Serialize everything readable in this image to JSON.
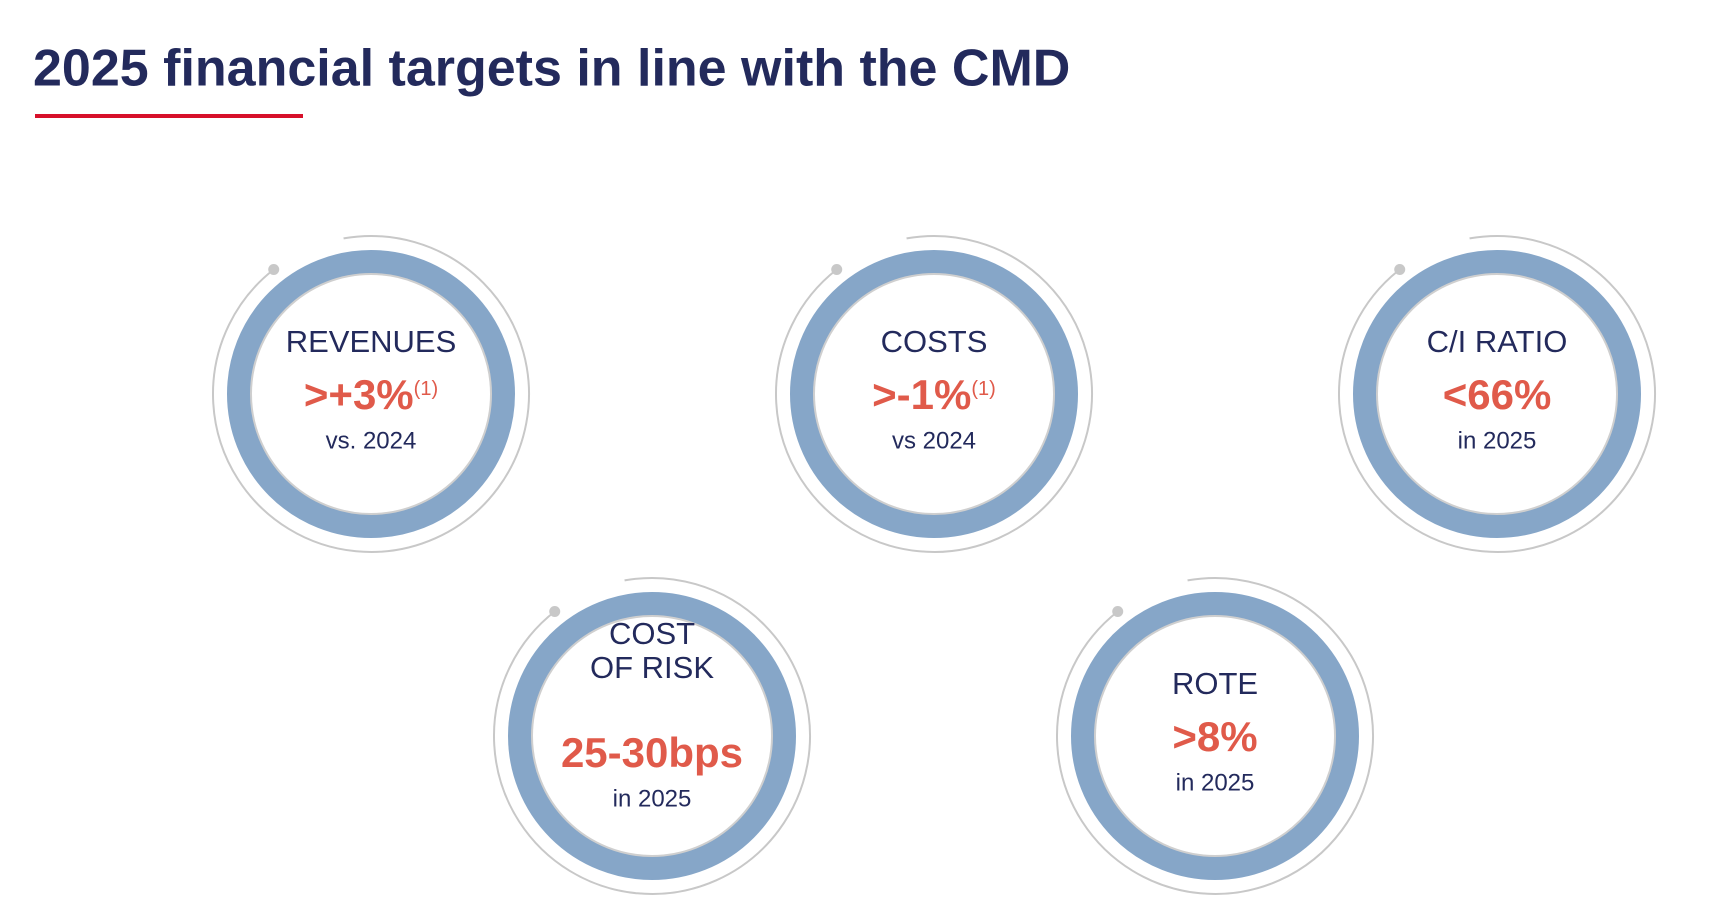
{
  "header": {
    "title": "2025 financial targets in line with the CMD"
  },
  "targets": [
    {
      "label": [
        "REVENUES"
      ],
      "value": ">+3%",
      "note": "(1)",
      "sub": "vs. 2024"
    },
    {
      "label": [
        "COSTS"
      ],
      "value": ">-1%",
      "note": "(1)",
      "sub": "vs 2024"
    },
    {
      "label": [
        "C/I RATIO"
      ],
      "value": "<66%",
      "sub": "in 2025"
    },
    {
      "label": [
        "COST",
        "OF RISK"
      ],
      "value": "25-30bps",
      "sub": "in 2025"
    },
    {
      "label": [
        "ROTE"
      ],
      "value": ">8%",
      "sub": "in 2025"
    }
  ]
}
